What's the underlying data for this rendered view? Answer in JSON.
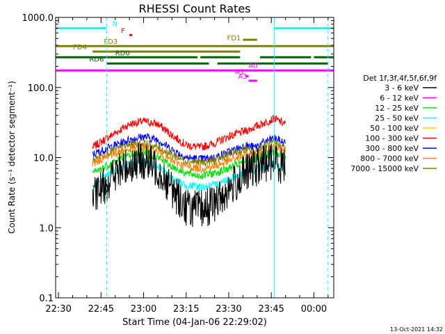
{
  "chart_data": {
    "type": "line",
    "title": "RHESSI Count Rates",
    "xlabel": "Start Time (04-Jan-06 22:29:02)",
    "ylabel": "Count Rate (s⁻¹ detector segment⁻¹)",
    "yscale": "log",
    "xlim": [
      "22:29",
      "00:07"
    ],
    "ylim": [
      0.1,
      1000
    ],
    "x_ticks": [
      "22:30",
      "22:45",
      "23:00",
      "23:15",
      "23:30",
      "23:45",
      "00:00"
    ],
    "y_ticks": [
      "0.1",
      "1.0",
      "10.0",
      "100.0",
      "1000.0"
    ],
    "grid": false,
    "legend": {
      "placement": "right",
      "header": "Det 1f,3f,4f,5f,6f,9f",
      "entries": [
        {
          "label": "3 - 6 keV",
          "color": "#000000"
        },
        {
          "label": "6 - 12 keV",
          "color": "#ff00ff"
        },
        {
          "label": "12 - 25 keV",
          "color": "#00e000"
        },
        {
          "label": "25 - 50 keV",
          "color": "#00ffff"
        },
        {
          "label": "50 - 100 keV",
          "color": "#dddd00"
        },
        {
          "label": "100 - 300 keV",
          "color": "#ff0000"
        },
        {
          "label": "300 - 800 keV",
          "color": "#0000ff"
        },
        {
          "label": "800 - 7000 keV",
          "color": "#ff8000"
        },
        {
          "label": "7000 - 15000 keV",
          "color": "#808000"
        }
      ]
    },
    "series": [
      {
        "band": "100 - 300 keV",
        "color": "#ff0000",
        "points": [
          [
            "22:42",
            14
          ],
          [
            "22:48",
            20
          ],
          [
            "22:55",
            30
          ],
          [
            "23:00",
            33
          ],
          [
            "23:05",
            30
          ],
          [
            "23:10",
            21
          ],
          [
            "23:15",
            15
          ],
          [
            "23:20",
            14
          ],
          [
            "23:25",
            16
          ],
          [
            "23:30",
            20
          ],
          [
            "23:36",
            24
          ],
          [
            "23:39",
            27
          ],
          [
            "23:43",
            32
          ],
          [
            "23:46",
            36
          ],
          [
            "23:50",
            30
          ]
        ]
      },
      {
        "band": "300 - 800 keV",
        "color": "#0000ff",
        "points": [
          [
            "22:42",
            11
          ],
          [
            "22:48",
            14
          ],
          [
            "22:55",
            18
          ],
          [
            "23:00",
            20
          ],
          [
            "23:05",
            18
          ],
          [
            "23:10",
            13
          ],
          [
            "23:15",
            10
          ],
          [
            "23:20",
            9.5
          ],
          [
            "23:25",
            10
          ],
          [
            "23:30",
            12
          ],
          [
            "23:36",
            15
          ],
          [
            "23:39",
            14
          ],
          [
            "23:43",
            17
          ],
          [
            "23:46",
            19
          ],
          [
            "23:50",
            16
          ]
        ]
      },
      {
        "band": "7000 - 15000 keV",
        "color": "#808000",
        "points": [
          [
            "22:42",
            9
          ],
          [
            "22:48",
            12
          ],
          [
            "22:55",
            15
          ],
          [
            "23:00",
            16
          ],
          [
            "23:05",
            14
          ],
          [
            "23:10",
            11
          ],
          [
            "23:15",
            9
          ],
          [
            "23:20",
            8.5
          ],
          [
            "23:25",
            9
          ],
          [
            "23:30",
            11
          ],
          [
            "23:36",
            13
          ],
          [
            "23:39",
            12
          ],
          [
            "23:43",
            15
          ],
          [
            "23:46",
            16
          ],
          [
            "23:50",
            14
          ]
        ]
      },
      {
        "band": "800 - 7000 keV",
        "color": "#ff8000",
        "points": [
          [
            "22:42",
            8
          ],
          [
            "22:48",
            11
          ],
          [
            "22:55",
            13
          ],
          [
            "23:00",
            14
          ],
          [
            "23:05",
            12
          ],
          [
            "23:10",
            9
          ],
          [
            "23:15",
            7.5
          ],
          [
            "23:20",
            7
          ],
          [
            "23:25",
            7.5
          ],
          [
            "23:30",
            9
          ],
          [
            "23:36",
            11
          ],
          [
            "23:39",
            10.5
          ],
          [
            "23:43",
            13
          ],
          [
            "23:46",
            14
          ],
          [
            "23:50",
            12
          ]
        ]
      },
      {
        "band": "12 - 25 keV",
        "color": "#00e000",
        "points": [
          [
            "22:42",
            6
          ],
          [
            "22:48",
            8
          ],
          [
            "22:55",
            11
          ],
          [
            "23:00",
            12
          ],
          [
            "23:05",
            10
          ],
          [
            "23:10",
            7.5
          ],
          [
            "23:15",
            6
          ],
          [
            "23:20",
            5.5
          ],
          [
            "23:25",
            6
          ],
          [
            "23:30",
            7
          ],
          [
            "23:36",
            9
          ],
          [
            "23:39",
            9
          ],
          [
            "23:43",
            11
          ],
          [
            "23:46",
            12
          ],
          [
            "23:50",
            10
          ]
        ]
      },
      {
        "band": "25 - 50 keV",
        "color": "#00ffff",
        "points": [
          [
            "22:42",
            4
          ],
          [
            "22:48",
            6
          ],
          [
            "22:55",
            8
          ],
          [
            "23:00",
            9
          ],
          [
            "23:05",
            7.5
          ],
          [
            "23:10",
            5
          ],
          [
            "23:15",
            4
          ],
          [
            "23:20",
            3.8
          ],
          [
            "23:25",
            4
          ],
          [
            "23:30",
            5
          ],
          [
            "23:36",
            6
          ],
          [
            "23:39",
            6.5
          ],
          [
            "23:43",
            7.5
          ],
          [
            "23:46",
            8
          ],
          [
            "23:50",
            7
          ]
        ]
      },
      {
        "band": "3 - 6 keV",
        "color": "#000000",
        "points": [
          [
            "22:42",
            2.5
          ],
          [
            "22:48",
            5
          ],
          [
            "22:55",
            8
          ],
          [
            "23:00",
            9
          ],
          [
            "23:05",
            7
          ],
          [
            "23:10",
            3.5
          ],
          [
            "23:15",
            2
          ],
          [
            "23:20",
            1.8
          ],
          [
            "23:25",
            2.2
          ],
          [
            "23:30",
            3.5
          ],
          [
            "23:36",
            6
          ],
          [
            "23:39",
            7
          ],
          [
            "23:43",
            8.5
          ],
          [
            "23:46",
            9
          ],
          [
            "23:50",
            7.5
          ]
        ]
      }
    ],
    "state_bars": [
      {
        "label": "N",
        "color": "#00ffff",
        "value": 700,
        "segments": [
          [
            "22:29",
            "22:47"
          ],
          [
            "23:46",
            "00:07"
          ]
        ]
      },
      {
        "label": "F",
        "color": "#ff0000",
        "value": 560,
        "segments": [
          [
            "22:55",
            "22:56"
          ]
        ]
      },
      {
        "label": "FD1",
        "color": "#808000",
        "value": 480,
        "segments": [
          [
            "23:35",
            "23:40"
          ]
        ]
      },
      {
        "label": "FD3",
        "color": "#808000",
        "value": 390,
        "segments": [
          [
            "22:29",
            "00:07"
          ]
        ]
      },
      {
        "label": "FD4",
        "color": "#808000",
        "value": 325,
        "segments": [
          [
            "22:42",
            "23:34"
          ]
        ]
      },
      {
        "label": "RD0",
        "color": "#006400",
        "value": 270,
        "segments": [
          [
            "22:29",
            "23:19"
          ],
          [
            "23:20",
            "23:34"
          ],
          [
            "23:41",
            "23:59"
          ],
          [
            "00:00",
            "00:07"
          ]
        ]
      },
      {
        "label": "RD6",
        "color": "#006400",
        "value": 220,
        "segments": [
          [
            "22:47",
            "23:23"
          ],
          [
            "23:26",
            "00:05"
          ]
        ]
      },
      {
        "label": "A0",
        "color": "#ff00ff",
        "value": 175,
        "segments": [
          [
            "22:29",
            "00:07"
          ]
        ]
      },
      {
        "label": "A1",
        "color": "#ff00ff",
        "value": 145,
        "segments": [
          [
            "23:36",
            "23:37"
          ]
        ]
      },
      {
        "label": "A3",
        "color": "#ff00ff",
        "value": 125,
        "segments": [
          [
            "23:37",
            "23:40"
          ]
        ]
      }
    ],
    "vlines": [
      {
        "time": "22:29",
        "color": "#00ffff",
        "style": "solid"
      },
      {
        "time": "22:47",
        "color": "#00ffff",
        "style": "dashed"
      },
      {
        "time": "23:46",
        "color": "#00ffff",
        "style": "solid"
      },
      {
        "time": "00:05",
        "color": "#00ffff",
        "style": "dashed"
      }
    ]
  },
  "footer": {
    "timestamp": "13-Oct-2021 14:32"
  }
}
